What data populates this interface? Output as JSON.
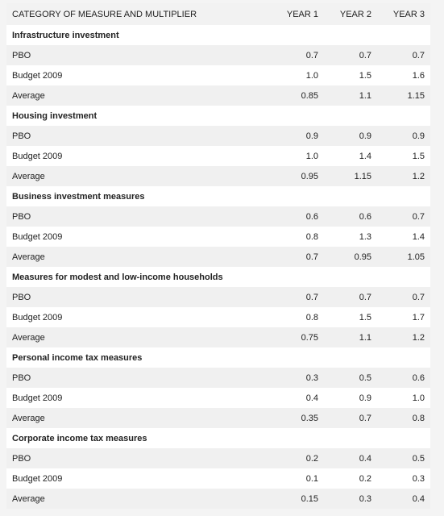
{
  "table": {
    "header": [
      "CATEGORY OF MEASURE AND MULTIPLIER",
      "YEAR 1",
      "YEAR 2",
      "YEAR 3"
    ],
    "sections": [
      {
        "title": "Infrastructure investment",
        "rows": [
          [
            "PBO",
            "0.7",
            "0.7",
            "0.7"
          ],
          [
            "Budget 2009",
            "1.0",
            "1.5",
            "1.6"
          ],
          [
            "Average",
            "0.85",
            "1.1",
            "1.15"
          ]
        ]
      },
      {
        "title": "Housing investment",
        "rows": [
          [
            "PBO",
            "0.9",
            "0.9",
            "0.9"
          ],
          [
            "Budget 2009",
            "1.0",
            "1.4",
            "1.5"
          ],
          [
            "Average",
            "0.95",
            "1.15",
            "1.2"
          ]
        ]
      },
      {
        "title": "Business investment measures",
        "rows": [
          [
            "PBO",
            "0.6",
            "0.6",
            "0.7"
          ],
          [
            "Budget 2009",
            "0.8",
            "1.3",
            "1.4"
          ],
          [
            "Average",
            "0.7",
            "0.95",
            "1.05"
          ]
        ]
      },
      {
        "title": "Measures for modest and low-income households",
        "rows": [
          [
            "PBO",
            "0.7",
            "0.7",
            "0.7"
          ],
          [
            "Budget 2009",
            "0.8",
            "1.5",
            "1.7"
          ],
          [
            "Average",
            "0.75",
            "1.1",
            "1.2"
          ]
        ]
      },
      {
        "title": "Personal income tax measures",
        "rows": [
          [
            "PBO",
            "0.3",
            "0.5",
            "0.6"
          ],
          [
            "Budget 2009",
            "0.4",
            "0.9",
            "1.0"
          ],
          [
            "Average",
            "0.35",
            "0.7",
            "0.8"
          ]
        ]
      },
      {
        "title": "Corporate income tax measures",
        "rows": [
          [
            "PBO",
            "0.2",
            "0.4",
            "0.5"
          ],
          [
            "Budget 2009",
            "0.1",
            "0.2",
            "0.3"
          ],
          [
            "Average",
            "0.15",
            "0.3",
            "0.4"
          ]
        ]
      }
    ]
  }
}
